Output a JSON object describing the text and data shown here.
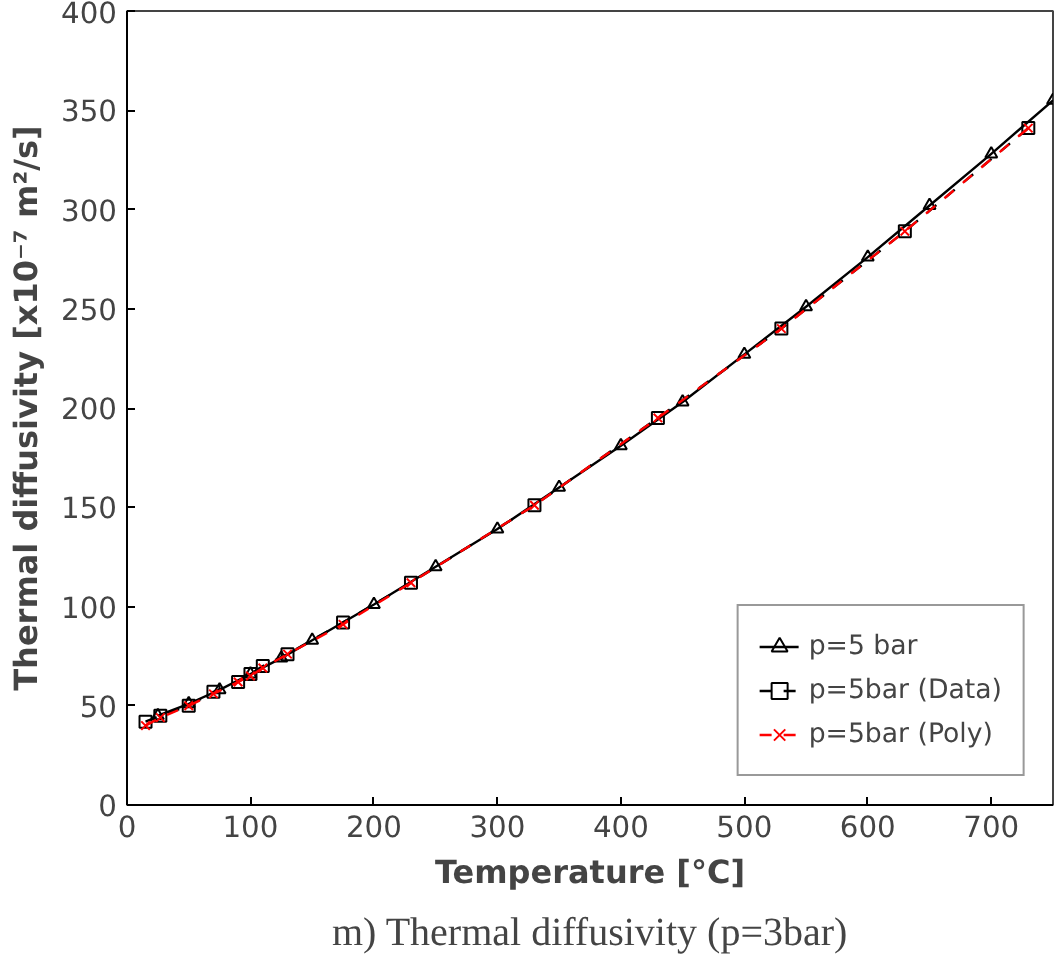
{
  "chart_data": {
    "type": "line",
    "title": "m) Thermal diffusivity (p=3bar)",
    "xlabel": "Temperature [°C]",
    "ylabel": "Thermal diffusivity [x10⁻⁷ m²/s]",
    "xlim": [
      0,
      750
    ],
    "ylim": [
      0,
      400
    ],
    "xticks": [
      0,
      100,
      200,
      300,
      400,
      500,
      600,
      700
    ],
    "yticks": [
      0,
      50,
      100,
      150,
      200,
      250,
      300,
      350,
      400
    ],
    "grid": false,
    "legend": "bottom right",
    "series": [
      {
        "name": "p=5 bar",
        "color": "#000000",
        "marker": "triangle",
        "line_style": "solid",
        "x": [
          25,
          50,
          75,
          100,
          125,
          150,
          200,
          250,
          300,
          350,
          400,
          450,
          500,
          550,
          600,
          650,
          700,
          750
        ],
        "values": [
          45,
          51,
          58,
          66,
          74,
          83,
          101,
          120,
          139,
          160,
          181,
          203,
          227,
          251,
          276,
          302,
          328,
          355
        ]
      },
      {
        "name": "p=5bar (Data)",
        "color": "#000000",
        "marker": "square",
        "line_style": "dashed",
        "x": [
          15,
          27,
          50,
          70,
          90,
          100,
          110,
          130,
          175,
          230,
          330,
          430,
          530,
          630,
          730
        ],
        "values": [
          42,
          45,
          50,
          57,
          62,
          66,
          70,
          76,
          92,
          112,
          151,
          195,
          240,
          289,
          341
        ]
      },
      {
        "name": "p=5bar (Poly)",
        "color": "#ff0000",
        "marker": "x",
        "line_style": "dashed",
        "x": [
          15,
          27,
          50,
          70,
          90,
          100,
          110,
          130,
          175,
          230,
          330,
          430,
          530,
          630,
          730
        ],
        "values": [
          40,
          44,
          50,
          56,
          62,
          65,
          69,
          76,
          91,
          112,
          151,
          195,
          240,
          289,
          341
        ]
      }
    ]
  }
}
